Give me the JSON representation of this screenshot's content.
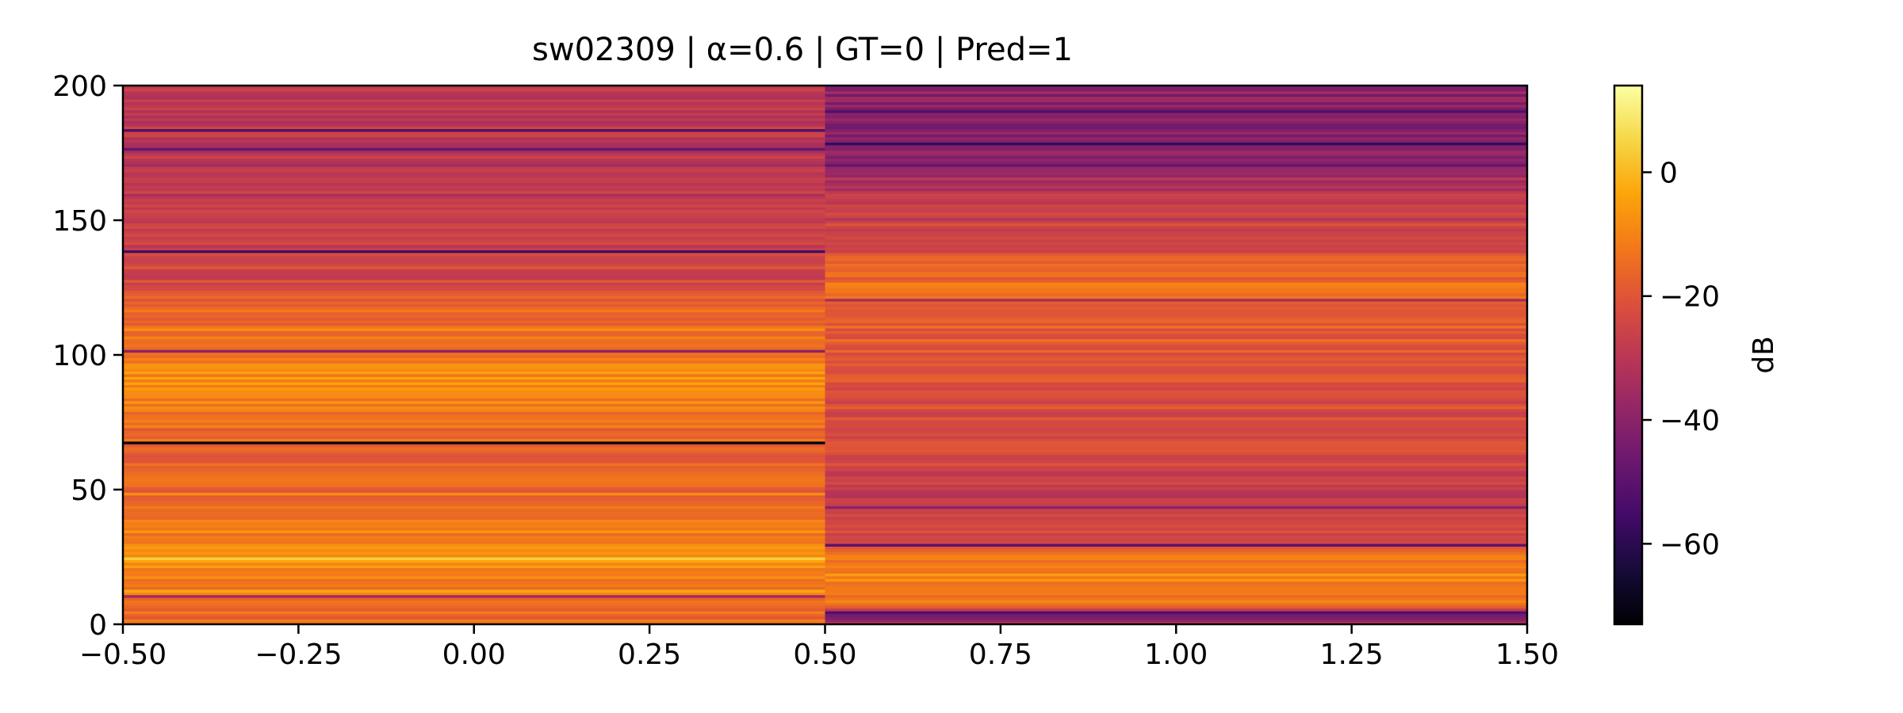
{
  "chart_data": {
    "type": "heatmap",
    "title": "sw02309 | α=0.6 | GT=0 | Pred=1",
    "xlabel": "",
    "ylabel": "",
    "xlim": [
      -0.5,
      1.5
    ],
    "ylim": [
      0,
      200
    ],
    "x_ticks": [
      "−0.50",
      "−0.25",
      "0.00",
      "0.25",
      "0.50",
      "0.75",
      "1.00",
      "1.25",
      "1.50"
    ],
    "y_ticks": [
      "0",
      "50",
      "100",
      "150",
      "200"
    ],
    "colormap": "inferno",
    "colorbar": {
      "label": "dB",
      "range": [
        -73,
        14
      ],
      "ticks": [
        "0",
        "−20",
        "−40",
        "−60"
      ]
    },
    "columns": [
      {
        "x_range": [
          -0.5,
          0.5
        ],
        "base_db_profile": [
          {
            "y": 0,
            "db": -16
          },
          {
            "y": 10,
            "db": -14
          },
          {
            "y": 25,
            "db": -6
          },
          {
            "y": 40,
            "db": -14
          },
          {
            "y": 60,
            "db": -18
          },
          {
            "y": 70,
            "db": -16
          },
          {
            "y": 90,
            "db": -8
          },
          {
            "y": 110,
            "db": -13
          },
          {
            "y": 130,
            "db": -24
          },
          {
            "y": 150,
            "db": -28
          },
          {
            "y": 175,
            "db": -30
          },
          {
            "y": 200,
            "db": -29
          }
        ],
        "features": [
          {
            "y": 24,
            "db": 4
          },
          {
            "y": 12,
            "db": -3
          },
          {
            "y": 48,
            "db": -8
          },
          {
            "y": 89,
            "db": -4
          },
          {
            "y": 67,
            "db": -70
          },
          {
            "y": 138,
            "db": -55
          },
          {
            "y": 183,
            "db": -52
          },
          {
            "y": 176,
            "db": -48
          },
          {
            "y": 101,
            "db": -40
          },
          {
            "y": 10,
            "db": -35
          }
        ]
      },
      {
        "x_range": [
          0.5,
          1.5
        ],
        "base_db_profile": [
          {
            "y": 0,
            "db": -32
          },
          {
            "y": 3,
            "db": -44
          },
          {
            "y": 8,
            "db": -12
          },
          {
            "y": 22,
            "db": -8
          },
          {
            "y": 30,
            "db": -22
          },
          {
            "y": 45,
            "db": -28
          },
          {
            "y": 60,
            "db": -24
          },
          {
            "y": 85,
            "db": -22
          },
          {
            "y": 110,
            "db": -18
          },
          {
            "y": 125,
            "db": -14
          },
          {
            "y": 140,
            "db": -22
          },
          {
            "y": 160,
            "db": -30
          },
          {
            "y": 180,
            "db": -42
          },
          {
            "y": 200,
            "db": -38
          }
        ],
        "features": [
          {
            "y": 4,
            "db": -52
          },
          {
            "y": 29,
            "db": -50
          },
          {
            "y": 43,
            "db": -40
          },
          {
            "y": 120,
            "db": -34
          },
          {
            "y": 170,
            "db": -48
          },
          {
            "y": 178,
            "db": -58
          },
          {
            "y": 190,
            "db": -52
          },
          {
            "y": 196,
            "db": -45
          }
        ]
      }
    ]
  }
}
